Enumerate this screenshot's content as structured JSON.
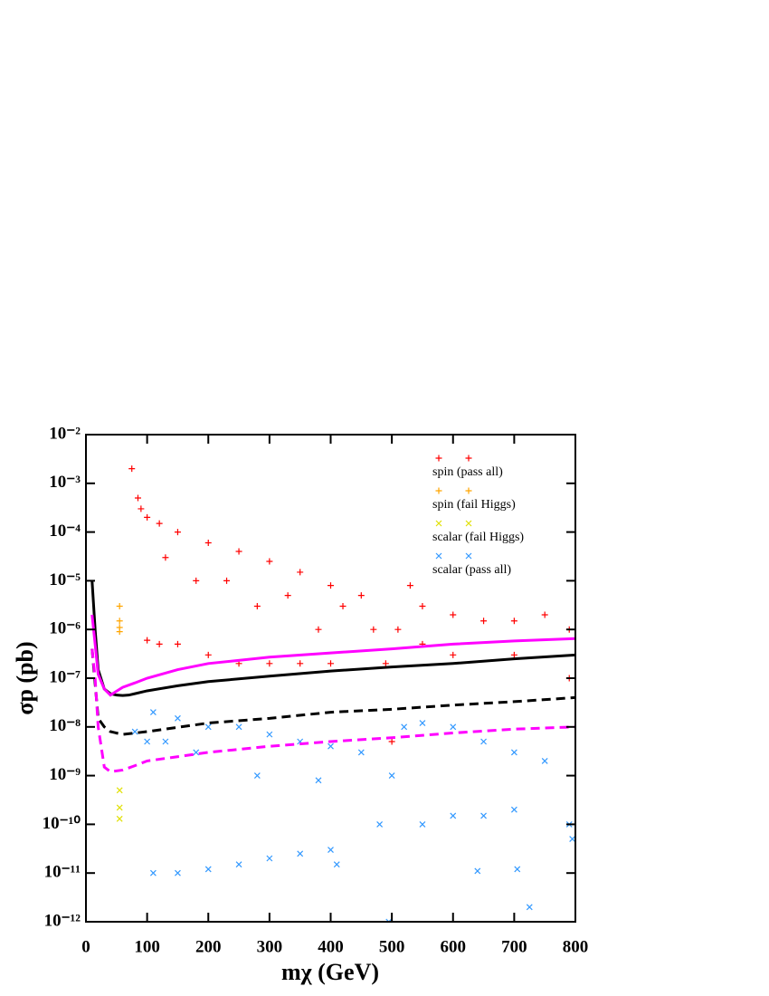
{
  "chart_data": {
    "type": "scatter",
    "x_label": "mχ (GeV)",
    "y_label": "σp (pb)",
    "log_y": true,
    "legend": "upper right",
    "xlim": [
      0,
      800
    ],
    "xticks": [
      0,
      100,
      200,
      300,
      400,
      500,
      600,
      700,
      800
    ],
    "ylim": [
      1e-12,
      0.01
    ],
    "yticks": [
      {
        "value": 1e-12,
        "label": "10⁻¹²"
      },
      {
        "value": 1e-11,
        "label": "10⁻¹¹"
      },
      {
        "value": 1e-10,
        "label": "10⁻¹⁰"
      },
      {
        "value": 1e-09,
        "label": "10⁻⁹"
      },
      {
        "value": 1e-08,
        "label": "10⁻⁸"
      },
      {
        "value": 1e-07,
        "label": "10⁻⁷"
      },
      {
        "value": 1e-06,
        "label": "10⁻⁶"
      },
      {
        "value": 1e-05,
        "label": "10⁻⁵"
      },
      {
        "value": 0.0001,
        "label": "10⁻⁴"
      },
      {
        "value": 0.001,
        "label": "10⁻³"
      },
      {
        "value": 0.01,
        "label": "10⁻²"
      }
    ],
    "series": [
      {
        "name": "spin (pass all)",
        "color": "#ff0000",
        "marker": "plus",
        "x": [
          75,
          85,
          90,
          100,
          100,
          120,
          120,
          150,
          150,
          200,
          200,
          250,
          250,
          300,
          300,
          350,
          350,
          400,
          400,
          450,
          470,
          490,
          500,
          510,
          530,
          550,
          600,
          650,
          700,
          750,
          790,
          600,
          700,
          790,
          550,
          180,
          280,
          380,
          130,
          230,
          330,
          420
        ],
        "values": [
          0.002,
          0.0005,
          0.0003,
          0.0002,
          6e-07,
          0.00015,
          5e-07,
          0.0001,
          5e-07,
          6e-05,
          3e-07,
          4e-05,
          2e-07,
          2.5e-05,
          2e-07,
          1.5e-05,
          2e-07,
          8e-06,
          2e-07,
          5e-06,
          1e-06,
          2e-07,
          5e-09,
          1e-06,
          8e-06,
          3e-06,
          2e-06,
          1.5e-06,
          1.5e-06,
          2e-06,
          1e-06,
          3e-07,
          3e-07,
          1e-07,
          5e-07,
          1e-05,
          3e-06,
          1e-06,
          3e-05,
          1e-05,
          5e-06,
          3e-06
        ]
      },
      {
        "name": "spin (fail Higgs)",
        "color": "#ffa500",
        "marker": "plus",
        "x": [
          55,
          55,
          55,
          55
        ],
        "values": [
          3e-06,
          1.5e-06,
          1.1e-06,
          9e-07
        ]
      },
      {
        "name": "scalar (fail Higgs)",
        "color": "#e0e000",
        "marker": "cross",
        "x": [
          55,
          55,
          55
        ],
        "values": [
          5e-10,
          2.2e-10,
          1.3e-10
        ]
      },
      {
        "name": "scalar (pass all)",
        "color": "#3399ff",
        "marker": "cross",
        "x": [
          80,
          100,
          110,
          110,
          150,
          150,
          200,
          200,
          250,
          250,
          300,
          300,
          350,
          350,
          400,
          400,
          450,
          480,
          495,
          500,
          520,
          550,
          550,
          600,
          600,
          650,
          650,
          700,
          700,
          750,
          790,
          410,
          640,
          705,
          725,
          795,
          180,
          280,
          380,
          130
        ],
        "values": [
          8e-09,
          5e-09,
          1e-11,
          2e-08,
          1.5e-08,
          1e-11,
          1e-08,
          1.2e-11,
          1e-08,
          1.5e-11,
          7e-09,
          2e-11,
          5e-09,
          2.5e-11,
          4e-09,
          3e-11,
          3e-09,
          1e-10,
          1e-12,
          1e-09,
          1e-08,
          1.2e-08,
          1e-10,
          1e-08,
          1.5e-10,
          5e-09,
          1.5e-10,
          3e-09,
          2e-10,
          2e-09,
          1e-10,
          1.5e-11,
          1.1e-11,
          1.2e-11,
          2e-12,
          5e-11,
          3e-09,
          1e-09,
          8e-10,
          5e-09
        ]
      },
      {
        "color": "#000000",
        "marker": "line",
        "dash": false,
        "x": [
          10,
          15,
          20,
          30,
          40,
          50,
          60,
          70,
          80,
          100,
          150,
          200,
          300,
          400,
          500,
          600,
          700,
          800
        ],
        "values": [
          1e-05,
          1e-06,
          1.5e-07,
          6e-08,
          4.8e-08,
          4.5e-08,
          4.4e-08,
          4.5e-08,
          4.8e-08,
          5.5e-08,
          7e-08,
          8.5e-08,
          1.1e-07,
          1.4e-07,
          1.7e-07,
          2e-07,
          2.5e-07,
          3e-07
        ]
      },
      {
        "color": "#ff00ff",
        "marker": "line",
        "dash": false,
        "x": [
          10,
          15,
          20,
          30,
          40,
          60,
          80,
          100,
          150,
          200,
          300,
          400,
          500,
          600,
          700,
          800
        ],
        "values": [
          2e-06,
          5e-07,
          1.2e-07,
          6e-08,
          4.5e-08,
          6.5e-08,
          8e-08,
          1e-07,
          1.5e-07,
          2e-07,
          2.7e-07,
          3.3e-07,
          4e-07,
          5e-07,
          5.8e-07,
          6.5e-07
        ]
      },
      {
        "color": "#000000",
        "marker": "line",
        "dash": true,
        "x": [
          10,
          20,
          30,
          40,
          60,
          100,
          200,
          300,
          400,
          500,
          600,
          700,
          800
        ],
        "values": [
          4e-07,
          1.5e-08,
          1e-08,
          8e-09,
          7e-09,
          8e-09,
          1.2e-08,
          1.5e-08,
          2e-08,
          2.3e-08,
          2.8e-08,
          3.3e-08,
          4e-08
        ]
      },
      {
        "color": "#ff00ff",
        "marker": "line",
        "dash": true,
        "x": [
          10,
          15,
          20,
          30,
          40,
          60,
          80,
          100,
          200,
          300,
          400,
          500,
          600,
          700,
          800
        ],
        "values": [
          4e-07,
          1e-07,
          1e-08,
          1.5e-09,
          1.2e-09,
          1.3e-09,
          1.6e-09,
          2e-09,
          3e-09,
          4e-09,
          5e-09,
          6e-09,
          7.5e-09,
          9e-09,
          1e-08
        ]
      }
    ]
  }
}
